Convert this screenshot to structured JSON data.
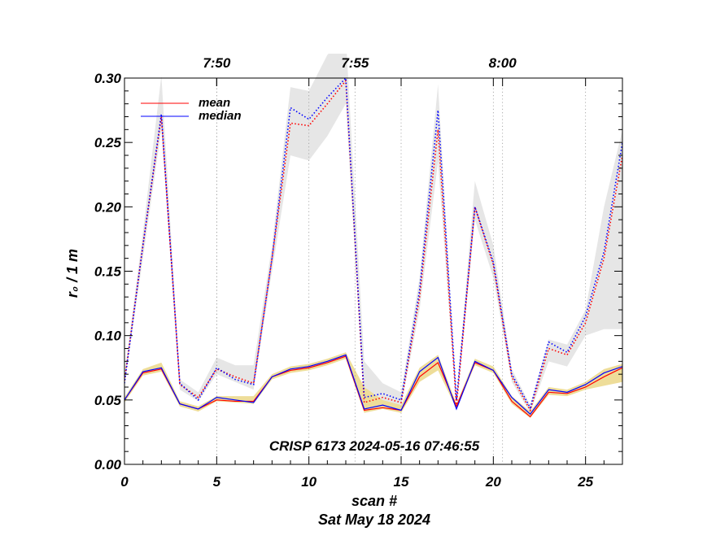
{
  "chart_data": {
    "type": "line",
    "xlabel": "scan #",
    "date_label": "Sat May 18 2024",
    "ylabel": "r₀ / 1 m",
    "annotation": "CRISP 6173 2024-05-16 07:46:55",
    "xlim": [
      0,
      27
    ],
    "ylim": [
      0,
      0.3
    ],
    "x_ticks": [
      0,
      5,
      10,
      15,
      20,
      25
    ],
    "x_tick_labels": [
      "0",
      "5",
      "10",
      "15",
      "20",
      "25"
    ],
    "y_ticks": [
      0.0,
      0.05,
      0.1,
      0.15,
      0.2,
      0.25,
      0.3
    ],
    "y_tick_labels": [
      "0.00",
      "0.05",
      "0.10",
      "0.15",
      "0.20",
      "0.25",
      "0.30"
    ],
    "time_ticks": [
      {
        "scan": 5,
        "label": "7:50"
      },
      {
        "scan": 12.5,
        "label": "7:55"
      },
      {
        "scan": 20.5,
        "label": "8:00"
      }
    ],
    "grid": "vertical dotted at x ticks and time ticks",
    "legend_position": "top-left",
    "x": [
      0,
      1,
      2,
      3,
      4,
      5,
      6,
      7,
      8,
      9,
      10,
      11,
      12,
      13,
      14,
      15,
      16,
      17,
      18,
      19,
      20,
      21,
      22,
      23,
      24,
      25,
      26,
      27
    ],
    "series": [
      {
        "name": "mean",
        "group": "upper",
        "style": "dotted",
        "color": "#ff0000",
        "values": [
          0.065,
          0.17,
          0.27,
          0.062,
          0.052,
          0.074,
          0.068,
          0.063,
          0.16,
          0.265,
          0.263,
          0.28,
          0.298,
          0.048,
          0.052,
          0.048,
          0.13,
          0.26,
          0.045,
          0.2,
          0.155,
          0.068,
          0.042,
          0.09,
          0.085,
          0.11,
          0.16,
          0.24
        ]
      },
      {
        "name": "median",
        "group": "upper",
        "style": "dotted",
        "color": "#0000ff",
        "values": [
          0.063,
          0.17,
          0.272,
          0.063,
          0.05,
          0.075,
          0.066,
          0.062,
          0.16,
          0.277,
          0.268,
          0.285,
          0.3,
          0.052,
          0.055,
          0.05,
          0.135,
          0.275,
          0.05,
          0.2,
          0.157,
          0.07,
          0.044,
          0.095,
          0.087,
          0.115,
          0.165,
          0.25
        ]
      },
      {
        "name": "mean",
        "group": "lower",
        "style": "solid",
        "color": "#ff0000",
        "values": [
          0.05,
          0.071,
          0.074,
          0.047,
          0.043,
          0.05,
          0.049,
          0.049,
          0.068,
          0.073,
          0.075,
          0.079,
          0.084,
          0.042,
          0.044,
          0.042,
          0.068,
          0.079,
          0.045,
          0.079,
          0.073,
          0.049,
          0.037,
          0.056,
          0.055,
          0.06,
          0.068,
          0.075
        ]
      },
      {
        "name": "median",
        "group": "lower",
        "style": "solid",
        "color": "#0000ff",
        "values": [
          0.05,
          0.072,
          0.075,
          0.047,
          0.043,
          0.052,
          0.05,
          0.048,
          0.068,
          0.074,
          0.076,
          0.08,
          0.085,
          0.043,
          0.046,
          0.042,
          0.072,
          0.083,
          0.043,
          0.08,
          0.073,
          0.052,
          0.039,
          0.058,
          0.056,
          0.062,
          0.071,
          0.076
        ]
      }
    ],
    "bands": [
      {
        "group": "upper",
        "color": "#e6e6e6",
        "low": [
          0.062,
          0.16,
          0.26,
          0.058,
          0.049,
          0.07,
          0.064,
          0.058,
          0.15,
          0.24,
          0.236,
          0.255,
          0.28,
          0.044,
          0.048,
          0.045,
          0.12,
          0.235,
          0.043,
          0.19,
          0.145,
          0.064,
          0.04,
          0.08,
          0.076,
          0.1,
          0.105,
          0.105
        ],
        "high": [
          0.07,
          0.18,
          0.302,
          0.066,
          0.056,
          0.083,
          0.077,
          0.077,
          0.17,
          0.293,
          0.29,
          0.318,
          0.333,
          0.08,
          0.063,
          0.056,
          0.145,
          0.295,
          0.052,
          0.22,
          0.17,
          0.074,
          0.046,
          0.097,
          0.093,
          0.12,
          0.2,
          0.26
        ]
      },
      {
        "group": "lower",
        "color": "#eedd99",
        "low": [
          0.048,
          0.069,
          0.072,
          0.045,
          0.041,
          0.049,
          0.048,
          0.047,
          0.066,
          0.071,
          0.073,
          0.077,
          0.082,
          0.04,
          0.043,
          0.04,
          0.064,
          0.073,
          0.043,
          0.077,
          0.071,
          0.047,
          0.036,
          0.054,
          0.053,
          0.058,
          0.061,
          0.064
        ],
        "high": [
          0.052,
          0.074,
          0.079,
          0.049,
          0.045,
          0.053,
          0.053,
          0.053,
          0.07,
          0.076,
          0.078,
          0.082,
          0.087,
          0.06,
          0.05,
          0.046,
          0.075,
          0.085,
          0.047,
          0.082,
          0.076,
          0.053,
          0.041,
          0.06,
          0.058,
          0.064,
          0.074,
          0.078
        ]
      }
    ]
  }
}
